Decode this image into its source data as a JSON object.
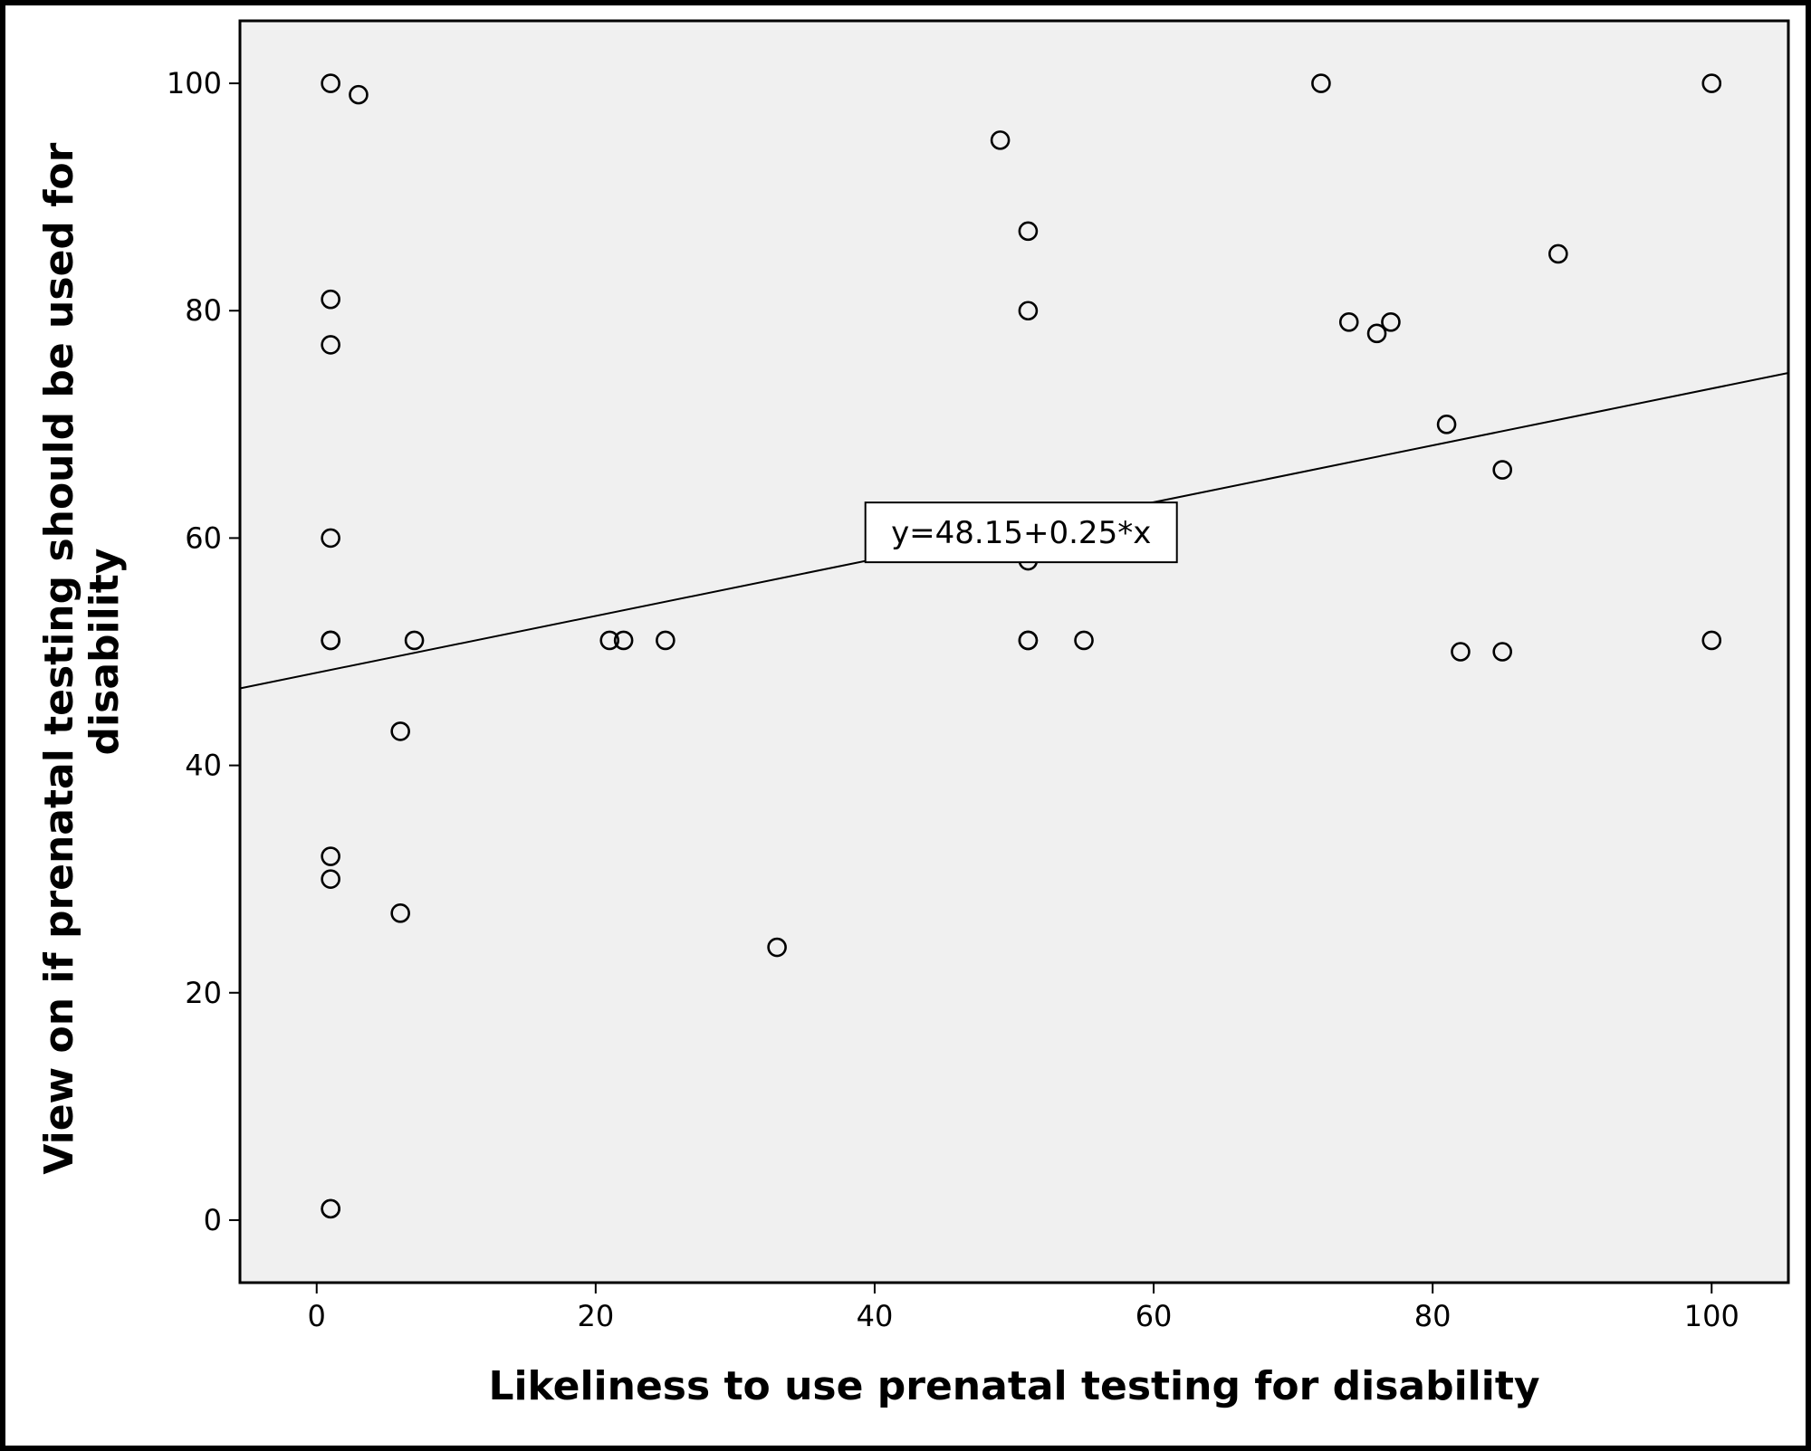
{
  "chart_data": {
    "type": "scatter",
    "xlabel": "Likeliness to use prenatal testing for disability",
    "ylabel_lines": [
      "View on if prenatal testing should be used for",
      "disability"
    ],
    "xlim": [
      -5.5,
      105.5
    ],
    "ylim": [
      -5.5,
      105.5
    ],
    "x_ticks": [
      0,
      20,
      40,
      60,
      80,
      100
    ],
    "y_ticks": [
      0,
      20,
      40,
      60,
      80,
      100
    ],
    "x_tick_labels": [
      "0",
      "20",
      "40",
      "60",
      "80",
      "100"
    ],
    "y_tick_labels": [
      "0",
      "20",
      "40",
      "60",
      "80",
      "100"
    ],
    "grid": false,
    "colors": {
      "plot_background": "#f0f0f0",
      "marker_edge": "#000000",
      "line": "#000000"
    },
    "points": [
      {
        "x": 1,
        "y": 100
      },
      {
        "x": 3,
        "y": 99
      },
      {
        "x": 1,
        "y": 81
      },
      {
        "x": 1,
        "y": 77
      },
      {
        "x": 1,
        "y": 60
      },
      {
        "x": 1,
        "y": 51
      },
      {
        "x": 1,
        "y": 51
      },
      {
        "x": 7,
        "y": 51
      },
      {
        "x": 6,
        "y": 43
      },
      {
        "x": 1,
        "y": 32
      },
      {
        "x": 1,
        "y": 30
      },
      {
        "x": 6,
        "y": 27
      },
      {
        "x": 1,
        "y": 1
      },
      {
        "x": 1,
        "y": 1
      },
      {
        "x": 21,
        "y": 51
      },
      {
        "x": 22,
        "y": 51
      },
      {
        "x": 25,
        "y": 51
      },
      {
        "x": 33,
        "y": 24
      },
      {
        "x": 49,
        "y": 95
      },
      {
        "x": 51,
        "y": 87
      },
      {
        "x": 51,
        "y": 80
      },
      {
        "x": 51,
        "y": 58
      },
      {
        "x": 51,
        "y": 51
      },
      {
        "x": 51,
        "y": 51
      },
      {
        "x": 55,
        "y": 51
      },
      {
        "x": 72,
        "y": 100
      },
      {
        "x": 74,
        "y": 79
      },
      {
        "x": 76,
        "y": 78
      },
      {
        "x": 77,
        "y": 79
      },
      {
        "x": 81,
        "y": 70
      },
      {
        "x": 82,
        "y": 50
      },
      {
        "x": 85,
        "y": 66
      },
      {
        "x": 85,
        "y": 50
      },
      {
        "x": 89,
        "y": 85
      },
      {
        "x": 100,
        "y": 100
      },
      {
        "x": 100,
        "y": 51
      }
    ],
    "fit_line": {
      "intercept": 48.15,
      "slope": 0.25,
      "label": "y=48.15+0.25*x",
      "label_anchor": {
        "x": 50.5,
        "y": 60.5
      }
    }
  }
}
